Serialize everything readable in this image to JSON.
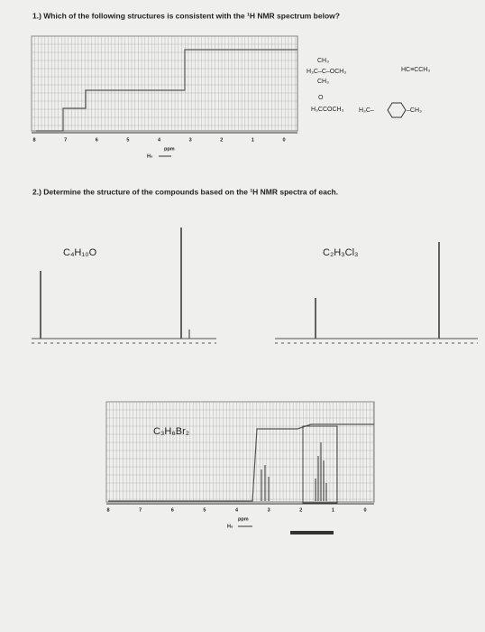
{
  "question1": {
    "text": "1.) Which of the following structures is consistent with the ¹H NMR spectrum below?",
    "spectrum": {
      "axis_labels": [
        "8",
        "7",
        "6",
        "5",
        "4",
        "3",
        "2",
        "1",
        "0"
      ],
      "unit": "ppm",
      "field": "H₀"
    },
    "structures": [
      {
        "lines": [
          "CH₃",
          "H₃C–C–OCH₃",
          "CH₃"
        ]
      },
      {
        "lines": [
          "HC≡CCH₃"
        ]
      },
      {
        "lines": [
          "O",
          "H₃CCOCH₃"
        ]
      },
      {
        "lines": [
          "H₃C–",
          "–CH₃"
        ]
      }
    ]
  },
  "question2": {
    "text": "2.) Determine the structure of the compounds based on the ¹H NMR spectra of each.",
    "spectra": [
      {
        "formula": "C₄H₁₀O"
      },
      {
        "formula": "C₂H₃Cl₃"
      },
      {
        "formula": "C₃H₆Br₂",
        "axis_labels": [
          "8",
          "7",
          "6",
          "5",
          "4",
          "3",
          "2",
          "1",
          "0"
        ],
        "unit": "ppm",
        "field": "H₀"
      }
    ]
  }
}
